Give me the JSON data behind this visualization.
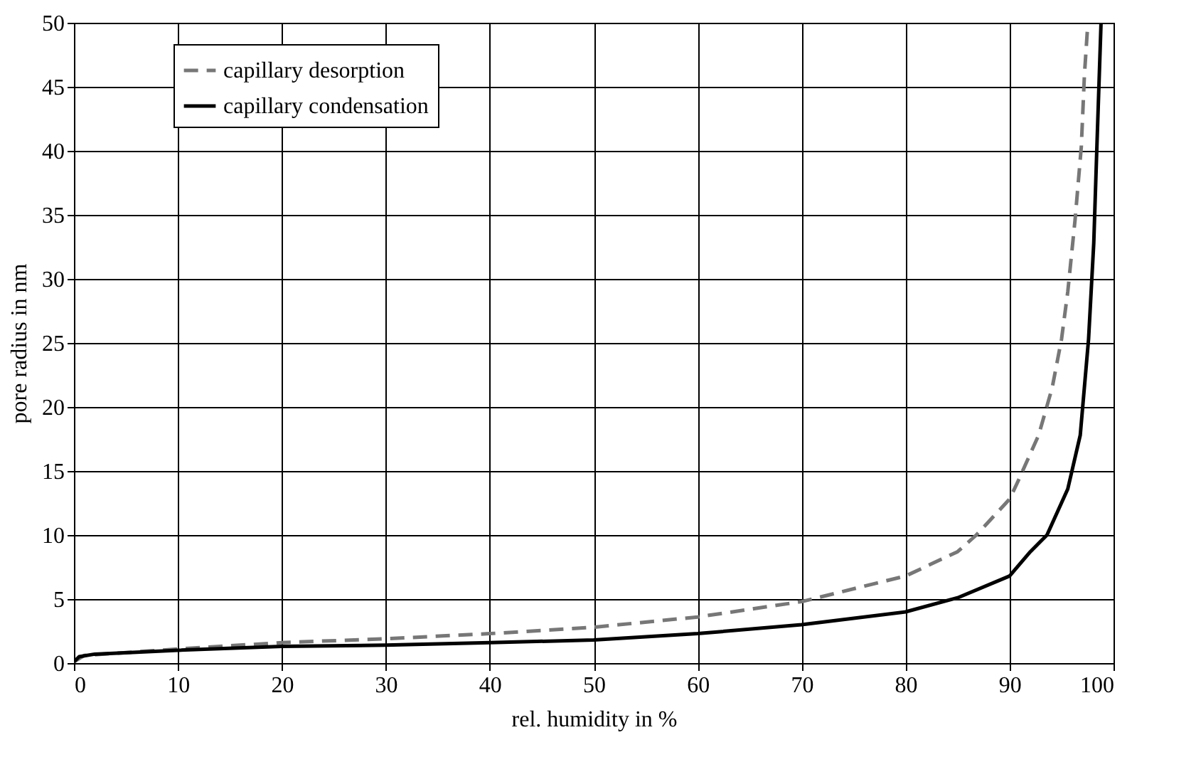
{
  "chart_data": {
    "type": "line",
    "xlabel": "rel. humidity in %",
    "ylabel": "pore radius in nm",
    "xlim": [
      0,
      100
    ],
    "xticks": [
      0,
      10,
      20,
      30,
      40,
      50,
      60,
      70,
      80,
      90,
      100
    ],
    "ylim": [
      0,
      50
    ],
    "yticks": [
      0,
      5,
      10,
      15,
      20,
      25,
      30,
      35,
      40,
      45,
      50
    ],
    "grid": true,
    "legend": "top left",
    "marker": "none",
    "series": [
      {
        "name": "capillary desorption",
        "color": "#777777",
        "line_style": "dashed",
        "x": [
          0,
          1,
          10,
          20,
          30,
          40,
          50,
          60,
          70,
          80,
          85,
          86.8,
          90,
          90.7,
          92.8,
          94.1,
          95.0,
          95.6,
          96.3,
          96.9,
          97.2,
          97.5
        ],
        "values": [
          0.1,
          0.6,
          1.1,
          1.6,
          1.9,
          2.3,
          2.8,
          3.6,
          4.8,
          6.8,
          8.7,
          10,
          12.8,
          14.0,
          17.8,
          21.5,
          25.3,
          29.0,
          34.6,
          40.3,
          45.9,
          49.6
        ]
      },
      {
        "name": "capillary condensation",
        "color": "#000000",
        "line_style": "solid",
        "x": [
          0,
          0.5,
          2,
          10,
          20,
          30,
          40,
          50,
          60,
          70,
          80,
          85,
          90,
          92,
          93.6,
          95.6,
          96.8,
          97.6,
          98.1,
          98.4,
          98.8
        ],
        "values": [
          0.1,
          0.5,
          0.7,
          1.0,
          1.3,
          1.4,
          1.6,
          1.8,
          2.3,
          3.0,
          4.0,
          5.1,
          6.8,
          8.7,
          10,
          13.6,
          17.8,
          25.3,
          32.8,
          40.3,
          50
        ]
      }
    ]
  }
}
